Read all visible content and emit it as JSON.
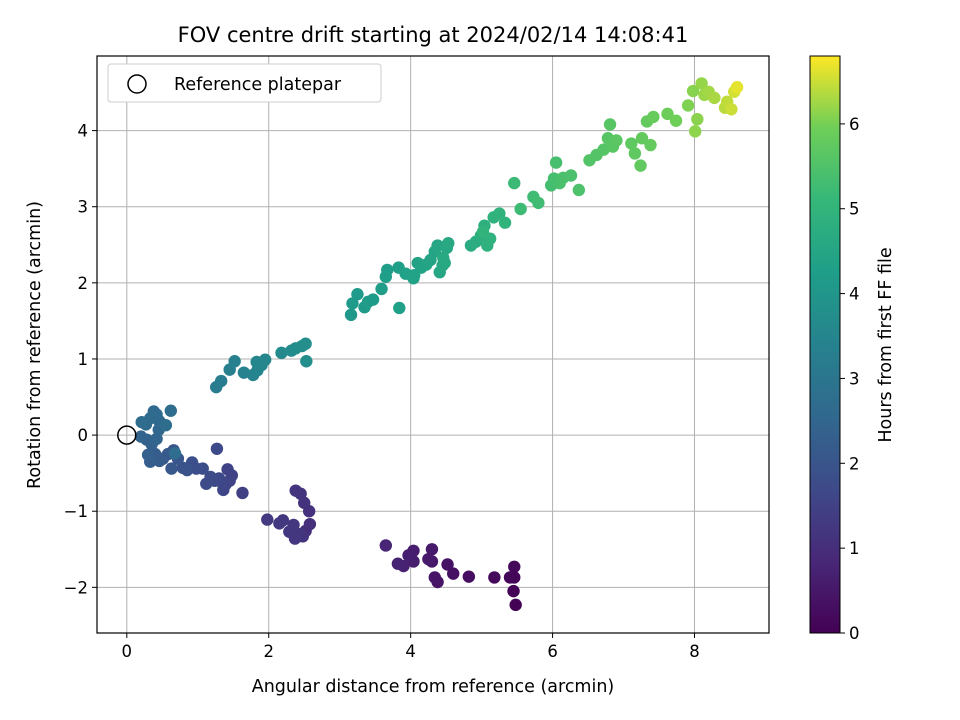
{
  "chart_data": {
    "type": "scatter",
    "title": "FOV centre drift starting at 2024/02/14 14:08:41",
    "xlabel": "Angular distance from reference (arcmin)",
    "ylabel": "Rotation from reference (arcmin)",
    "xlim": [
      -0.42,
      9.05
    ],
    "ylim": [
      -2.6,
      4.98
    ],
    "xticks": [
      0,
      2,
      4,
      6,
      8
    ],
    "xtick_labels": [
      "0",
      "2",
      "4",
      "6",
      "8"
    ],
    "yticks": [
      -2,
      -1,
      0,
      1,
      2,
      3,
      4
    ],
    "ytick_labels": [
      "−2",
      "−1",
      "0",
      "1",
      "2",
      "3",
      "4"
    ],
    "grid": true,
    "legend": {
      "position": "top-left",
      "entries": [
        {
          "label": "Reference platepar",
          "marker": "open-circle"
        }
      ]
    },
    "reference_point": {
      "x": 0,
      "y": 0
    },
    "colorbar": {
      "label": "Hours from first FF file",
      "colormap": "viridis",
      "range": [
        0,
        6.8
      ],
      "ticks": [
        0,
        1,
        2,
        3,
        4,
        5,
        6
      ],
      "tick_labels": [
        "0",
        "1",
        "2",
        "3",
        "4",
        "5",
        "6"
      ]
    },
    "series": [
      {
        "fields": [
          "x",
          "y",
          "hours"
        ],
        "points": [
          [
            5.48,
            -2.23,
            0.02
          ],
          [
            5.45,
            -2.05,
            0.05
          ],
          [
            5.46,
            -1.87,
            0.08
          ],
          [
            5.4,
            -1.87,
            0.1
          ],
          [
            5.46,
            -1.73,
            0.12
          ],
          [
            5.18,
            -1.87,
            0.18
          ],
          [
            4.82,
            -1.86,
            0.28
          ],
          [
            4.6,
            -1.82,
            0.32
          ],
          [
            4.52,
            -1.7,
            0.36
          ],
          [
            4.38,
            -1.93,
            0.4
          ],
          [
            4.34,
            -1.87,
            0.44
          ],
          [
            4.3,
            -1.66,
            0.48
          ],
          [
            4.3,
            -1.5,
            0.52
          ],
          [
            4.25,
            -1.63,
            0.55
          ],
          [
            4.04,
            -1.66,
            0.6
          ],
          [
            4.04,
            -1.52,
            0.62
          ],
          [
            3.97,
            -1.58,
            0.66
          ],
          [
            3.9,
            -1.72,
            0.7
          ],
          [
            3.82,
            -1.69,
            0.74
          ],
          [
            3.65,
            -1.45,
            0.78
          ],
          [
            2.58,
            -1.17,
            1.02
          ],
          [
            2.52,
            -1.26,
            1.06
          ],
          [
            2.57,
            -1.0,
            1.08
          ],
          [
            2.5,
            -0.89,
            1.1
          ],
          [
            2.45,
            -0.77,
            1.12
          ],
          [
            2.38,
            -0.73,
            1.14
          ],
          [
            2.48,
            -1.33,
            1.16
          ],
          [
            2.42,
            -1.3,
            1.18
          ],
          [
            2.37,
            -1.36,
            1.2
          ],
          [
            2.35,
            -1.18,
            1.22
          ],
          [
            2.29,
            -1.27,
            1.24
          ],
          [
            2.2,
            -1.12,
            1.26
          ],
          [
            2.15,
            -1.16,
            1.28
          ],
          [
            1.98,
            -1.11,
            1.3
          ],
          [
            1.63,
            -0.76,
            1.45
          ],
          [
            1.48,
            -0.53,
            1.5
          ],
          [
            1.45,
            -0.6,
            1.53
          ],
          [
            1.42,
            -0.45,
            1.56
          ],
          [
            1.39,
            -0.65,
            1.58
          ],
          [
            1.36,
            -0.72,
            1.6
          ],
          [
            1.34,
            -0.62,
            1.63
          ],
          [
            1.3,
            -0.57,
            1.66
          ],
          [
            1.27,
            -0.18,
            1.68
          ],
          [
            1.24,
            -0.6,
            1.7
          ],
          [
            1.18,
            -0.55,
            1.73
          ],
          [
            1.12,
            -0.64,
            1.76
          ],
          [
            1.07,
            -0.44,
            1.8
          ],
          [
            0.98,
            -0.44,
            1.84
          ],
          [
            0.92,
            -0.36,
            1.88
          ],
          [
            0.85,
            -0.46,
            1.92
          ],
          [
            0.79,
            -0.43,
            1.96
          ],
          [
            0.72,
            -0.31,
            2.0
          ],
          [
            0.66,
            -0.2,
            2.04
          ],
          [
            0.63,
            -0.44,
            2.08
          ],
          [
            0.58,
            -0.25,
            2.12
          ],
          [
            0.51,
            -0.31,
            2.16
          ],
          [
            0.46,
            -0.34,
            2.2
          ],
          [
            0.4,
            -0.25,
            2.24
          ],
          [
            0.33,
            -0.35,
            2.28
          ],
          [
            0.3,
            -0.26,
            2.32
          ],
          [
            0.35,
            -0.12,
            2.36
          ],
          [
            0.28,
            -0.06,
            2.4
          ],
          [
            0.2,
            -0.02,
            2.44
          ],
          [
            0.42,
            -0.05,
            2.48
          ],
          [
            0.45,
            0.07,
            2.52
          ],
          [
            0.46,
            0.18,
            2.56
          ],
          [
            0.42,
            0.27,
            2.6
          ],
          [
            0.38,
            0.31,
            2.62
          ],
          [
            0.33,
            0.22,
            2.64
          ],
          [
            0.27,
            0.14,
            2.66
          ],
          [
            0.21,
            0.17,
            2.68
          ],
          [
            0.55,
            0.13,
            2.7
          ],
          [
            0.62,
            0.32,
            2.72
          ],
          [
            0.68,
            -0.24,
            2.74
          ],
          [
            1.26,
            0.63,
            3.2
          ],
          [
            1.33,
            0.71,
            3.25
          ],
          [
            1.45,
            0.86,
            3.3
          ],
          [
            1.52,
            0.97,
            3.35
          ],
          [
            1.65,
            0.82,
            3.4
          ],
          [
            1.78,
            0.79,
            3.45
          ],
          [
            1.84,
            0.85,
            3.48
          ],
          [
            1.9,
            0.92,
            3.5
          ],
          [
            1.83,
            0.96,
            3.52
          ],
          [
            1.95,
            0.99,
            3.55
          ],
          [
            2.18,
            1.08,
            3.65
          ],
          [
            2.32,
            1.11,
            3.7
          ],
          [
            2.38,
            1.14,
            3.72
          ],
          [
            2.47,
            1.17,
            3.74
          ],
          [
            2.52,
            1.2,
            3.76
          ],
          [
            2.53,
            0.97,
            3.78
          ],
          [
            3.16,
            1.58,
            4.1
          ],
          [
            3.18,
            1.73,
            4.12
          ],
          [
            3.25,
            1.85,
            4.14
          ],
          [
            3.35,
            1.68,
            4.16
          ],
          [
            3.4,
            1.75,
            4.18
          ],
          [
            3.47,
            1.78,
            4.2
          ],
          [
            3.59,
            1.92,
            4.22
          ],
          [
            3.65,
            2.08,
            4.24
          ],
          [
            3.67,
            2.17,
            4.26
          ],
          [
            3.83,
            2.2,
            4.3
          ],
          [
            3.84,
            1.67,
            4.32
          ],
          [
            3.93,
            2.12,
            4.34
          ],
          [
            4.04,
            2.06,
            4.36
          ],
          [
            4.05,
            2.1,
            4.38
          ],
          [
            4.1,
            2.26,
            4.4
          ],
          [
            4.15,
            2.2,
            4.42
          ],
          [
            4.22,
            2.24,
            4.44
          ],
          [
            4.28,
            2.3,
            4.46
          ],
          [
            4.34,
            2.41,
            4.48
          ],
          [
            4.38,
            2.49,
            4.5
          ],
          [
            4.41,
            2.14,
            4.52
          ],
          [
            4.45,
            2.23,
            4.54
          ],
          [
            4.51,
            2.46,
            4.56
          ],
          [
            4.53,
            2.52,
            4.58
          ],
          [
            4.48,
            2.26,
            4.6
          ],
          [
            4.46,
            2.33,
            4.62
          ],
          [
            4.85,
            2.49,
            4.7
          ],
          [
            4.92,
            2.54,
            4.74
          ],
          [
            4.99,
            2.62,
            4.78
          ],
          [
            5.04,
            2.75,
            4.82
          ],
          [
            5.08,
            2.49,
            4.86
          ],
          [
            5.12,
            2.58,
            4.9
          ],
          [
            5.17,
            2.86,
            4.92
          ],
          [
            5.25,
            2.91,
            4.94
          ],
          [
            5.33,
            2.79,
            4.96
          ],
          [
            5.02,
            2.67,
            4.98
          ],
          [
            5.46,
            3.31,
            5.2
          ],
          [
            5.55,
            2.97,
            5.22
          ],
          [
            5.73,
            3.13,
            5.26
          ],
          [
            5.8,
            3.05,
            5.28
          ],
          [
            5.98,
            3.28,
            5.34
          ],
          [
            6.02,
            3.37,
            5.36
          ],
          [
            6.05,
            3.58,
            5.38
          ],
          [
            6.1,
            3.31,
            5.4
          ],
          [
            6.15,
            3.38,
            5.42
          ],
          [
            6.26,
            3.41,
            5.44
          ],
          [
            6.37,
            3.22,
            5.46
          ],
          [
            6.52,
            3.61,
            5.54
          ],
          [
            6.62,
            3.68,
            5.56
          ],
          [
            6.72,
            3.75,
            5.58
          ],
          [
            6.78,
            3.9,
            5.6
          ],
          [
            6.81,
            4.08,
            5.62
          ],
          [
            6.85,
            3.79,
            5.64
          ],
          [
            6.9,
            3.87,
            5.66
          ],
          [
            7.11,
            3.83,
            5.72
          ],
          [
            7.16,
            3.7,
            5.74
          ],
          [
            7.24,
            3.54,
            5.76
          ],
          [
            7.26,
            3.9,
            5.78
          ],
          [
            7.33,
            4.12,
            5.8
          ],
          [
            7.38,
            3.81,
            5.82
          ],
          [
            7.42,
            4.18,
            5.84
          ],
          [
            7.62,
            4.22,
            5.92
          ],
          [
            7.74,
            4.13,
            5.94
          ],
          [
            7.91,
            4.33,
            6.05
          ],
          [
            7.98,
            4.52,
            6.1
          ],
          [
            8.04,
            4.15,
            6.12
          ],
          [
            8.01,
            3.99,
            6.14
          ],
          [
            8.1,
            4.62,
            6.18
          ],
          [
            8.14,
            4.47,
            6.22
          ],
          [
            8.2,
            4.51,
            6.26
          ],
          [
            8.28,
            4.43,
            6.3
          ],
          [
            8.43,
            4.3,
            6.4
          ],
          [
            8.46,
            4.38,
            6.44
          ],
          [
            8.52,
            4.28,
            6.5
          ],
          [
            8.56,
            4.51,
            6.55
          ],
          [
            8.6,
            4.57,
            6.65
          ]
        ]
      }
    ]
  }
}
